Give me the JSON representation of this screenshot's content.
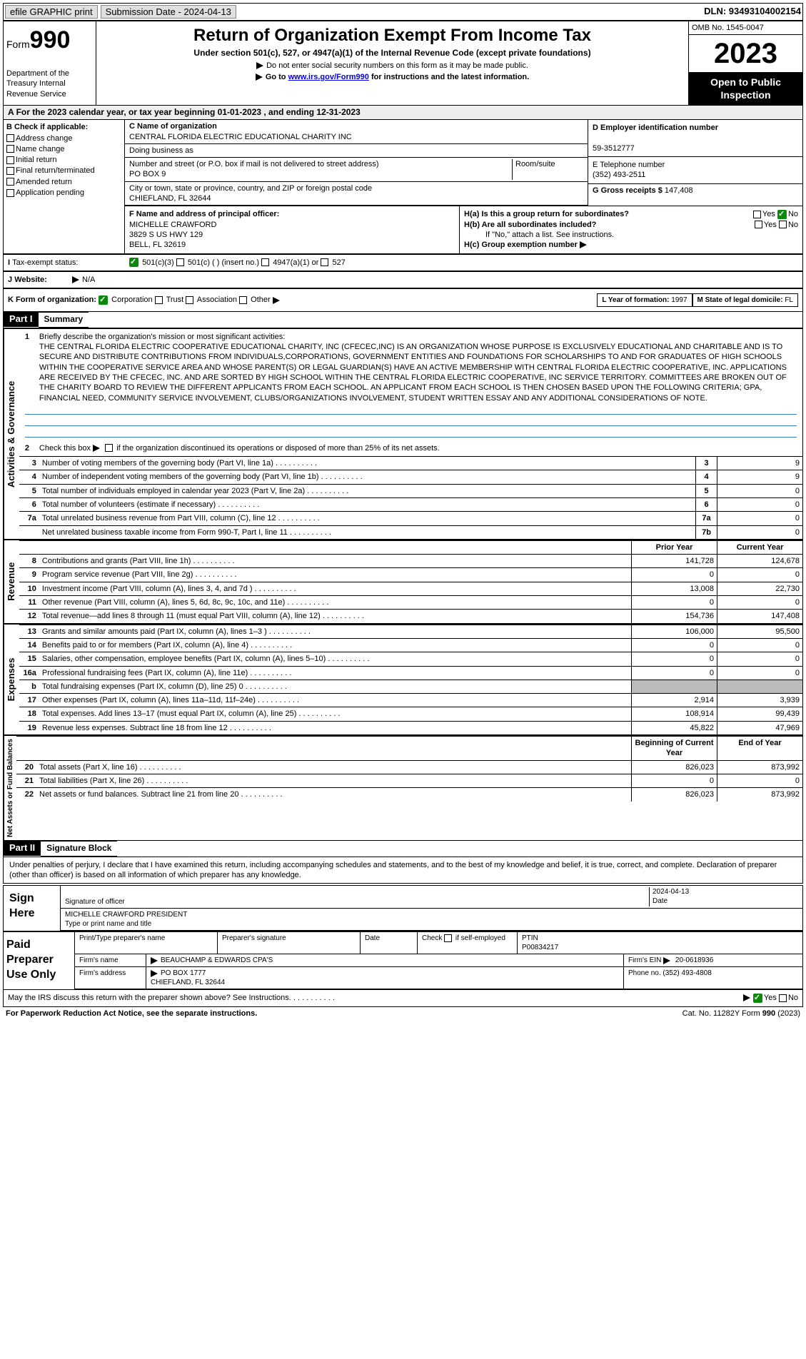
{
  "topbar": {
    "efile": "efile GRAPHIC print",
    "submission": "Submission Date - 2024-04-13",
    "dln": "DLN: 93493104002154"
  },
  "header": {
    "form": "Form",
    "num": "990",
    "title": "Return of Organization Exempt From Income Tax",
    "sub": "Under section 501(c), 527, or 4947(a)(1) of the Internal Revenue Code (except private foundations)",
    "nossn": "Do not enter social security numbers on this form as it may be made public.",
    "goto_pre": "Go to ",
    "goto_link": "www.irs.gov/Form990",
    "goto_post": " for instructions and the latest information.",
    "dept": "Department of the Treasury Internal Revenue Service",
    "omb": "OMB No. 1545-0047",
    "year": "2023",
    "open": "Open to Public Inspection"
  },
  "A": {
    "calyear": "For the 2023 calendar year, or tax year beginning 01-01-2023   , and ending 12-31-2023"
  },
  "B": {
    "hdr": "B Check if applicable:",
    "items": [
      "Address change",
      "Name change",
      "Initial return",
      "Final return/terminated",
      "Amended return",
      "Application pending"
    ]
  },
  "C": {
    "lbl_name": "C Name of organization",
    "name": "CENTRAL FLORIDA ELECTRIC EDUCATIONAL CHARITY INC",
    "dba_lbl": "Doing business as",
    "addr_lbl": "Number and street (or P.O. box if mail is not delivered to street address)",
    "addr": "PO BOX 9",
    "room_lbl": "Room/suite",
    "city_lbl": "City or town, state or province, country, and ZIP or foreign postal code",
    "city": "CHIEFLAND, FL  32644"
  },
  "D": {
    "lbl": "D Employer identification number",
    "val": "59-3512777"
  },
  "E": {
    "lbl": "E Telephone number",
    "val": "(352) 493-2511"
  },
  "G": {
    "lbl": "G Gross receipts $",
    "val": "147,408"
  },
  "F": {
    "lbl": "F  Name and address of principal officer:",
    "name": "MICHELLE CRAWFORD",
    "addr1": "3829 S US HWY 129",
    "addr2": "BELL, FL  32619"
  },
  "H": {
    "a": "H(a)  Is this a group return for subordinates?",
    "b": "H(b)  Are all subordinates included?",
    "note": "If \"No,\" attach a list. See instructions.",
    "c": "H(c)  Group exemption number",
    "yes": "Yes",
    "no": "No"
  },
  "I": {
    "lbl": "Tax-exempt status:",
    "opts": [
      "501(c)(3)",
      "501(c) (  ) (insert no.)",
      "4947(a)(1) or",
      "527"
    ]
  },
  "J": {
    "lbl": "Website:",
    "val": "N/A"
  },
  "K": {
    "lbl": "K Form of organization:",
    "opts": [
      "Corporation",
      "Trust",
      "Association",
      "Other"
    ]
  },
  "L": {
    "lbl": "L Year of formation:",
    "val": "1997"
  },
  "M": {
    "lbl": "M State of legal domicile:",
    "val": "FL"
  },
  "part1": {
    "hdr": "Part I",
    "title": "Summary",
    "l1_lbl": "Briefly describe the organization's mission or most significant activities:",
    "l1": "THE CENTRAL FLORIDA ELECTRIC COOPERATIVE EDUCATIONAL CHARITY, INC (CFECEC,INC) IS AN ORGANIZATION WHOSE PURPOSE IS EXCLUSIVELY EDUCATIONAL AND CHARITABLE AND IS TO SECURE AND DISTRIBUTE CONTRIBUTIONS FROM INDIVIDUALS,CORPORATIONS, GOVERNMENT ENTITIES AND FOUNDATIONS FOR SCHOLARSHIPS TO AND FOR GRADUATES OF HIGH SCHOOLS WITHIN THE COOPERATIVE SERVICE AREA AND WHOSE PARENT(S) OR LEGAL GUARDIAN(S) HAVE AN ACTIVE MEMBERSHIP WITH CENTRAL FLORIDA ELECTRIC COOPERATIVE, INC. APPLICATIONS ARE RECEIVED BY THE CFECEC, INC. AND ARE SORTED BY HIGH SCHOOL WITHIN THE CENTRAL FLORIDA ELECTRIC COOPERATIVE, INC SERVICE TERRITORY. COMMITTEES ARE BROKEN OUT OF THE CHARITY BOARD TO REVIEW THE DIFFERENT APPLICANTS FROM EACH SCHOOL. AN APPLICANT FROM EACH SCHOOL IS THEN CHOSEN BASED UPON THE FOLLOWING CRITERIA; GPA, FINANCIAL NEED, COMMUNITY SERVICE INVOLVEMENT, CLUBS/ORGANIZATIONS INVOLVEMENT, STUDENT WRITTEN ESSAY AND ANY ADDITIONAL CONSIDERATIONS OF NOTE.",
    "l2": "Check this box        if the organization discontinued its operations or disposed of more than 25% of its net assets.",
    "sideAG": "Activities & Governance",
    "sideR": "Revenue",
    "sideE": "Expenses",
    "sideN": "Net Assets or Fund Balances",
    "gov": [
      {
        "n": "3",
        "d": "Number of voting members of the governing body (Part VI, line 1a)",
        "c": "3",
        "v": "9"
      },
      {
        "n": "4",
        "d": "Number of independent voting members of the governing body (Part VI, line 1b)",
        "c": "4",
        "v": "9"
      },
      {
        "n": "5",
        "d": "Total number of individuals employed in calendar year 2023 (Part V, line 2a)",
        "c": "5",
        "v": "0"
      },
      {
        "n": "6",
        "d": "Total number of volunteers (estimate if necessary)",
        "c": "6",
        "v": "0"
      },
      {
        "n": "7a",
        "d": "Total unrelated business revenue from Part VIII, column (C), line 12",
        "c": "7a",
        "v": "0"
      },
      {
        "n": "",
        "d": "Net unrelated business taxable income from Form 990-T, Part I, line 11",
        "c": "7b",
        "v": "0"
      }
    ],
    "col_prior": "Prior Year",
    "col_cur": "Current Year",
    "rev": [
      {
        "n": "8",
        "d": "Contributions and grants (Part VIII, line 1h)",
        "p": "141,728",
        "c": "124,678"
      },
      {
        "n": "9",
        "d": "Program service revenue (Part VIII, line 2g)",
        "p": "0",
        "c": "0"
      },
      {
        "n": "10",
        "d": "Investment income (Part VIII, column (A), lines 3, 4, and 7d )",
        "p": "13,008",
        "c": "22,730"
      },
      {
        "n": "11",
        "d": "Other revenue (Part VIII, column (A), lines 5, 6d, 8c, 9c, 10c, and 11e)",
        "p": "0",
        "c": "0"
      },
      {
        "n": "12",
        "d": "Total revenue—add lines 8 through 11 (must equal Part VIII, column (A), line 12)",
        "p": "154,736",
        "c": "147,408"
      }
    ],
    "exp": [
      {
        "n": "13",
        "d": "Grants and similar amounts paid (Part IX, column (A), lines 1–3 )",
        "p": "106,000",
        "c": "95,500"
      },
      {
        "n": "14",
        "d": "Benefits paid to or for members (Part IX, column (A), line 4)",
        "p": "0",
        "c": "0"
      },
      {
        "n": "15",
        "d": "Salaries, other compensation, employee benefits (Part IX, column (A), lines 5–10)",
        "p": "0",
        "c": "0"
      },
      {
        "n": "16a",
        "d": "Professional fundraising fees (Part IX, column (A), line 11e)",
        "p": "0",
        "c": "0"
      },
      {
        "n": "b",
        "d": "Total fundraising expenses (Part IX, column (D), line 25) 0",
        "p": "",
        "c": "",
        "g": true
      },
      {
        "n": "17",
        "d": "Other expenses (Part IX, column (A), lines 11a–11d, 11f–24e)",
        "p": "2,914",
        "c": "3,939"
      },
      {
        "n": "18",
        "d": "Total expenses. Add lines 13–17 (must equal Part IX, column (A), line 25)",
        "p": "108,914",
        "c": "99,439"
      },
      {
        "n": "19",
        "d": "Revenue less expenses. Subtract line 18 from line 12",
        "p": "45,822",
        "c": "47,969"
      }
    ],
    "col_beg": "Beginning of Current Year",
    "col_end": "End of Year",
    "net": [
      {
        "n": "20",
        "d": "Total assets (Part X, line 16)",
        "p": "826,023",
        "c": "873,992"
      },
      {
        "n": "21",
        "d": "Total liabilities (Part X, line 26)",
        "p": "0",
        "c": "0"
      },
      {
        "n": "22",
        "d": "Net assets or fund balances. Subtract line 21 from line 20",
        "p": "826,023",
        "c": "873,992"
      }
    ]
  },
  "part2": {
    "hdr": "Part II",
    "title": "Signature Block",
    "decl": "Under penalties of perjury, I declare that I have examined this return, including accompanying schedules and statements, and to the best of my knowledge and belief, it is true, correct, and complete. Declaration of preparer (other than officer) is based on all information of which preparer has any knowledge.",
    "sign_here": "Sign Here",
    "sig_off": "Signature of officer",
    "sig_name": "MICHELLE CRAWFORD PRESIDENT",
    "sig_type": "Type or print name and title",
    "date_lbl": "Date",
    "date": "2024-04-13",
    "paid": "Paid Preparer Use Only",
    "prep_name_lbl": "Print/Type preparer's name",
    "prep_sig_lbl": "Preparer's signature",
    "prep_date_lbl": "Date",
    "prep_self": "Check        if self-employed",
    "ptin_lbl": "PTIN",
    "ptin": "P00834217",
    "firm_name_lbl": "Firm's name",
    "firm_name": "BEAUCHAMP & EDWARDS CPA'S",
    "firm_ein_lbl": "Firm's EIN",
    "firm_ein": "20-0618936",
    "firm_addr_lbl": "Firm's address",
    "firm_addr": "PO BOX 1777",
    "firm_city": "CHIEFLAND, FL  32644",
    "phone_lbl": "Phone no.",
    "phone": "(352) 493-4808",
    "discuss": "May the IRS discuss this return with the preparer shown above? See Instructions.",
    "yes": "Yes",
    "no": "No"
  },
  "footer": {
    "pra": "For Paperwork Reduction Act Notice, see the separate instructions.",
    "cat": "Cat. No. 11282Y",
    "form": "Form 990 (2023)"
  }
}
